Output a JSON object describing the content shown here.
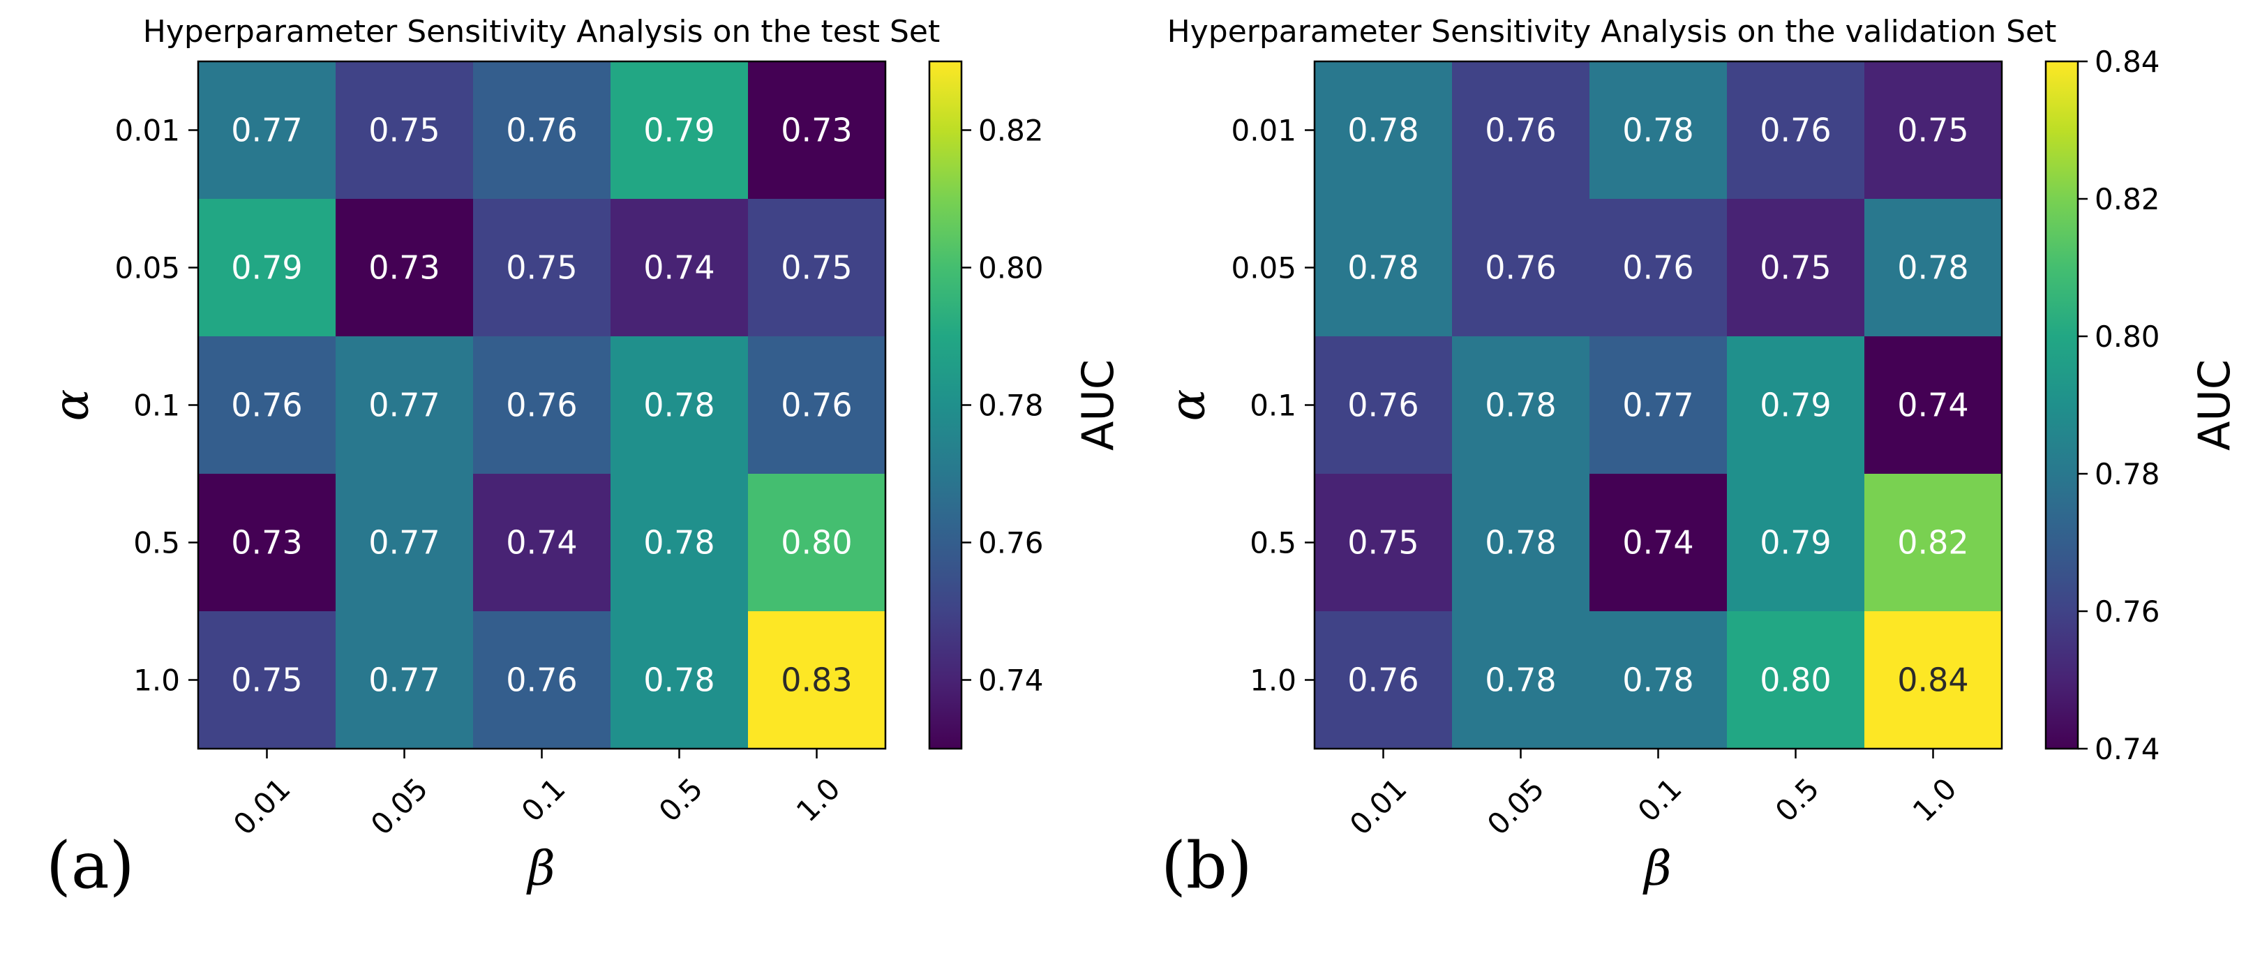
{
  "chart_data": [
    {
      "type": "heatmap",
      "panel_label": "(a)",
      "title": "Hyperparameter Sensitivity Analysis on the test Set",
      "xlabel": "β",
      "ylabel": "α",
      "x_categories": [
        "0.01",
        "0.05",
        "0.1",
        "0.5",
        "1.0"
      ],
      "y_categories": [
        "0.01",
        "0.05",
        "0.1",
        "0.5",
        "1.0"
      ],
      "values": [
        [
          0.77,
          0.75,
          0.76,
          0.79,
          0.73
        ],
        [
          0.79,
          0.73,
          0.75,
          0.74,
          0.75
        ],
        [
          0.76,
          0.77,
          0.76,
          0.78,
          0.76
        ],
        [
          0.73,
          0.77,
          0.74,
          0.78,
          0.8
        ],
        [
          0.75,
          0.77,
          0.76,
          0.78,
          0.83
        ]
      ],
      "colorbar": {
        "label": "AUC",
        "colormap": "viridis",
        "range": [
          0.73,
          0.83
        ],
        "ticks": [
          "0.74",
          "0.76",
          "0.78",
          "0.80",
          "0.82"
        ]
      }
    },
    {
      "type": "heatmap",
      "panel_label": "(b)",
      "title": "Hyperparameter Sensitivity Analysis on the validation Set",
      "xlabel": "β",
      "ylabel": "α",
      "x_categories": [
        "0.01",
        "0.05",
        "0.1",
        "0.5",
        "1.0"
      ],
      "y_categories": [
        "0.01",
        "0.05",
        "0.1",
        "0.5",
        "1.0"
      ],
      "values": [
        [
          0.78,
          0.76,
          0.78,
          0.76,
          0.75
        ],
        [
          0.78,
          0.76,
          0.76,
          0.75,
          0.78
        ],
        [
          0.76,
          0.78,
          0.77,
          0.79,
          0.74
        ],
        [
          0.75,
          0.78,
          0.74,
          0.79,
          0.82
        ],
        [
          0.76,
          0.78,
          0.78,
          0.8,
          0.84
        ]
      ],
      "colorbar": {
        "label": "AUC",
        "colormap": "viridis",
        "range": [
          0.74,
          0.84
        ],
        "ticks": [
          "0.74",
          "0.76",
          "0.78",
          "0.80",
          "0.82",
          "0.84"
        ]
      }
    }
  ]
}
